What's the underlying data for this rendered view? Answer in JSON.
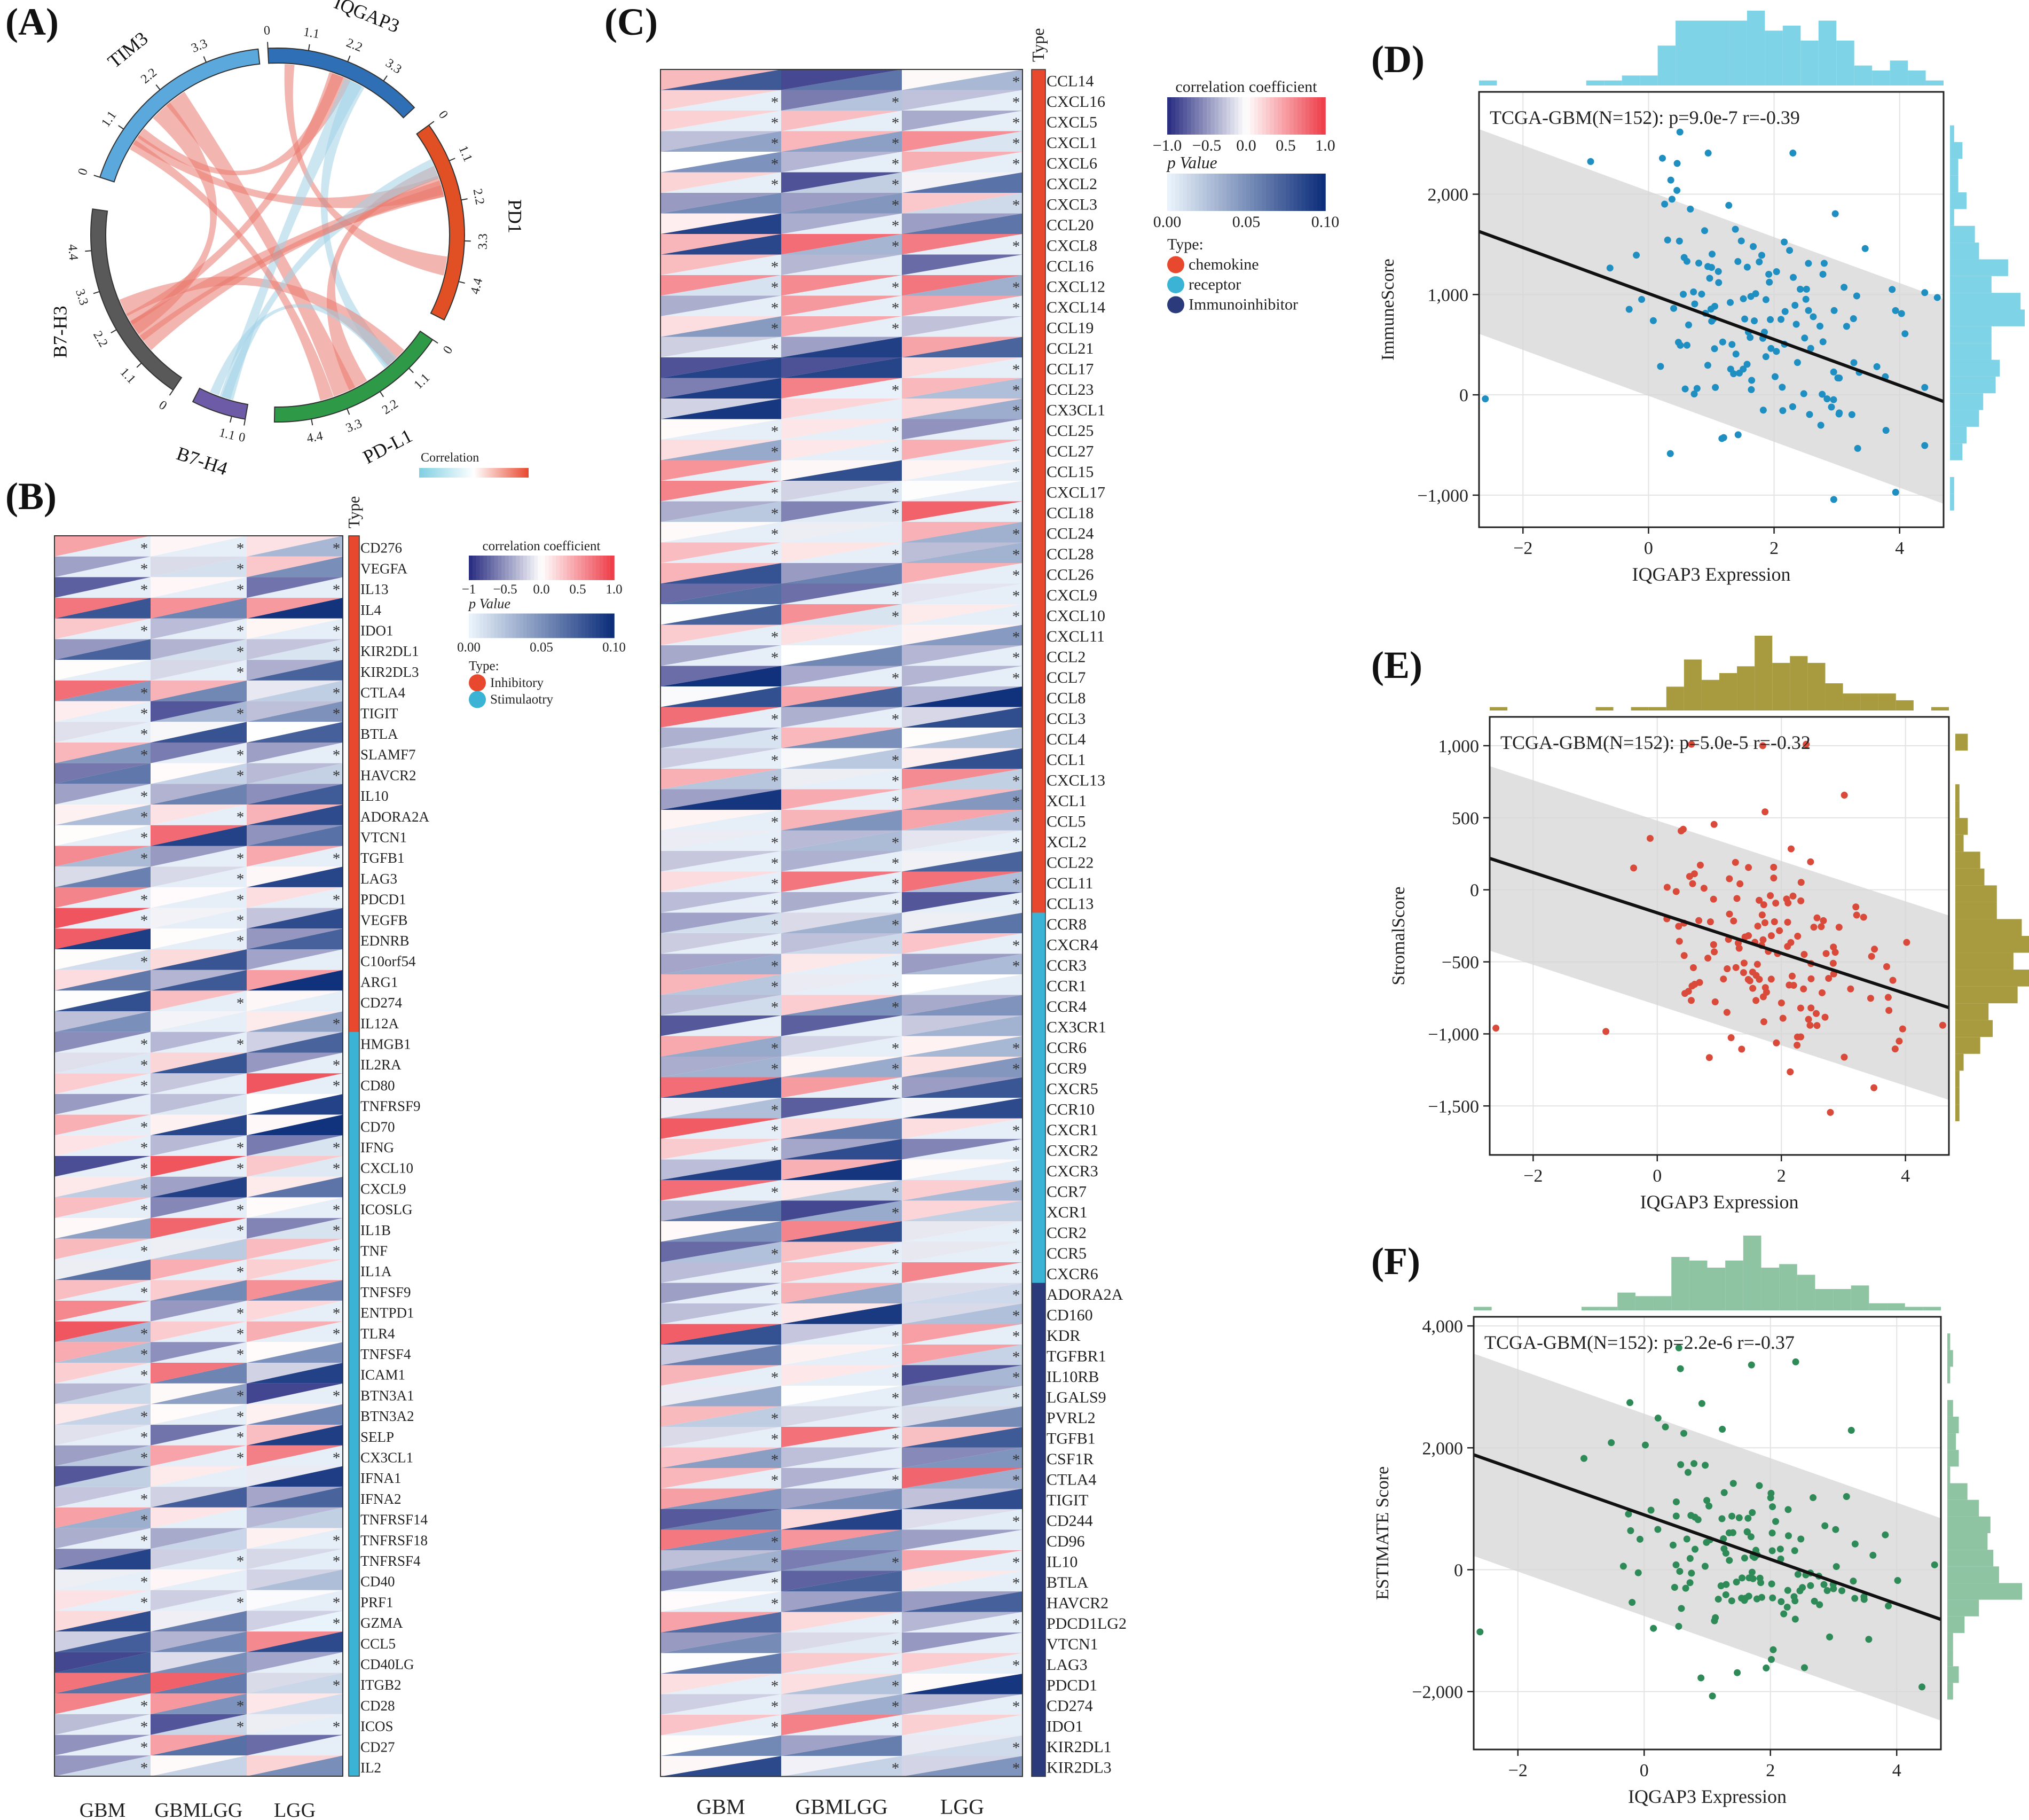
{
  "panel_labels": {
    "a": "(A)",
    "b": "(B)",
    "c": "(C)",
    "d": "(D)",
    "e": "(E)",
    "f": "(F)"
  },
  "colors": {
    "inhibitory": "#E8482E",
    "stimulatory": "#3BB3D4",
    "chemokine": "#E8482E",
    "receptor": "#3BB3D4",
    "immunoinhibitor": "#2B3A7A",
    "tim3": "#5BA8DD",
    "iqgap3": "#2F6FB5",
    "pd1": "#E05024",
    "pdl1": "#2E9A47",
    "b7h4": "#6E5BA8",
    "b7h3": "#595959",
    "immune_points": "#1F8FC2",
    "immune_hist": "#7FD3E6",
    "stromal_points": "#D94A3A",
    "stromal_hist": "#A89A3E",
    "estimate_points": "#2E8B57",
    "estimate_hist": "#8FC4A3"
  },
  "chart_data": [
    {
      "type": "chord",
      "id": "A",
      "sectors": [
        {
          "name": "IQGAP3",
          "ticks": [
            "0",
            "1.1",
            "2.2",
            "3.3"
          ]
        },
        {
          "name": "PD1",
          "ticks": [
            "0",
            "1.1",
            "2.2",
            "3.3",
            "4.4"
          ]
        },
        {
          "name": "PD-L1",
          "ticks": [
            "0",
            "1.1",
            "2.2",
            "3.3",
            "4.4"
          ]
        },
        {
          "name": "B7-H4",
          "ticks": [
            "0",
            "1.1"
          ]
        },
        {
          "name": "B7-H3",
          "ticks": [
            "0",
            "1.1",
            "2.2",
            "3.3",
            "4.4"
          ]
        },
        {
          "name": "TIM3",
          "ticks": [
            "0",
            "1.1",
            "2.2",
            "3.3"
          ]
        }
      ],
      "legend": {
        "title": "Correlation"
      }
    },
    {
      "type": "heatmap",
      "id": "B",
      "columns": [
        "GBM",
        "GBMLGG",
        "LGG"
      ],
      "type_label": "Type",
      "legend": {
        "corr_title": "correlation coefficient",
        "corr_ticks": [
          "−1",
          "−0.5",
          "0.0",
          "0.5",
          "1.0"
        ],
        "p_title": "p Value",
        "p_ticks": [
          "0.00",
          "0.05",
          "0.10"
        ],
        "type_title": "Type:",
        "types": [
          "Inhibitory",
          "Stimulaotry"
        ]
      },
      "rows": [
        {
          "gene": "CD276",
          "type": "Inhibitory"
        },
        {
          "gene": "VEGFA",
          "type": "Inhibitory"
        },
        {
          "gene": "IL13",
          "type": "Inhibitory"
        },
        {
          "gene": "IL4",
          "type": "Inhibitory"
        },
        {
          "gene": "IDO1",
          "type": "Inhibitory"
        },
        {
          "gene": "KIR2DL1",
          "type": "Inhibitory"
        },
        {
          "gene": "KIR2DL3",
          "type": "Inhibitory"
        },
        {
          "gene": "CTLA4",
          "type": "Inhibitory"
        },
        {
          "gene": "TIGIT",
          "type": "Inhibitory"
        },
        {
          "gene": "BTLA",
          "type": "Inhibitory"
        },
        {
          "gene": "SLAMF7",
          "type": "Inhibitory"
        },
        {
          "gene": "HAVCR2",
          "type": "Inhibitory"
        },
        {
          "gene": "IL10",
          "type": "Inhibitory"
        },
        {
          "gene": "ADORA2A",
          "type": "Inhibitory"
        },
        {
          "gene": "VTCN1",
          "type": "Inhibitory"
        },
        {
          "gene": "TGFB1",
          "type": "Inhibitory"
        },
        {
          "gene": "LAG3",
          "type": "Inhibitory"
        },
        {
          "gene": "PDCD1",
          "type": "Inhibitory"
        },
        {
          "gene": "VEGFB",
          "type": "Inhibitory"
        },
        {
          "gene": "EDNRB",
          "type": "Inhibitory"
        },
        {
          "gene": "C10orf54",
          "type": "Inhibitory"
        },
        {
          "gene": "ARG1",
          "type": "Inhibitory"
        },
        {
          "gene": "CD274",
          "type": "Inhibitory"
        },
        {
          "gene": "IL12A",
          "type": "Inhibitory"
        },
        {
          "gene": "HMGB1",
          "type": "Stimulaotry"
        },
        {
          "gene": "IL2RA",
          "type": "Stimulaotry"
        },
        {
          "gene": "CD80",
          "type": "Stimulaotry"
        },
        {
          "gene": "TNFRSF9",
          "type": "Stimulaotry"
        },
        {
          "gene": "CD70",
          "type": "Stimulaotry"
        },
        {
          "gene": "IFNG",
          "type": "Stimulaotry"
        },
        {
          "gene": "CXCL10",
          "type": "Stimulaotry"
        },
        {
          "gene": "CXCL9",
          "type": "Stimulaotry"
        },
        {
          "gene": "ICOSLG",
          "type": "Stimulaotry"
        },
        {
          "gene": "IL1B",
          "type": "Stimulaotry"
        },
        {
          "gene": "TNF",
          "type": "Stimulaotry"
        },
        {
          "gene": "IL1A",
          "type": "Stimulaotry"
        },
        {
          "gene": "TNFSF9",
          "type": "Stimulaotry"
        },
        {
          "gene": "ENTPD1",
          "type": "Stimulaotry"
        },
        {
          "gene": "TLR4",
          "type": "Stimulaotry"
        },
        {
          "gene": "TNFSF4",
          "type": "Stimulaotry"
        },
        {
          "gene": "ICAM1",
          "type": "Stimulaotry"
        },
        {
          "gene": "BTN3A1",
          "type": "Stimulaotry"
        },
        {
          "gene": "BTN3A2",
          "type": "Stimulaotry"
        },
        {
          "gene": "SELP",
          "type": "Stimulaotry"
        },
        {
          "gene": "CX3CL1",
          "type": "Stimulaotry"
        },
        {
          "gene": "IFNA1",
          "type": "Stimulaotry"
        },
        {
          "gene": "IFNA2",
          "type": "Stimulaotry"
        },
        {
          "gene": "TNFRSF14",
          "type": "Stimulaotry"
        },
        {
          "gene": "TNFRSF18",
          "type": "Stimulaotry"
        },
        {
          "gene": "TNFRSF4",
          "type": "Stimulaotry"
        },
        {
          "gene": "CD40",
          "type": "Stimulaotry"
        },
        {
          "gene": "PRF1",
          "type": "Stimulaotry"
        },
        {
          "gene": "GZMA",
          "type": "Stimulaotry"
        },
        {
          "gene": "CCL5",
          "type": "Stimulaotry"
        },
        {
          "gene": "CD40LG",
          "type": "Stimulaotry"
        },
        {
          "gene": "ITGB2",
          "type": "Stimulaotry"
        },
        {
          "gene": "CD28",
          "type": "Stimulaotry"
        },
        {
          "gene": "ICOS",
          "type": "Stimulaotry"
        },
        {
          "gene": "CD27",
          "type": "Stimulaotry"
        },
        {
          "gene": "IL2",
          "type": "Stimulaotry"
        }
      ]
    },
    {
      "type": "heatmap",
      "id": "C",
      "columns": [
        "GBM",
        "GBMLGG",
        "LGG"
      ],
      "type_label": "Type",
      "legend": {
        "corr_title": "correlation coefficient",
        "corr_ticks": [
          "−1.0",
          "−0.5",
          "0.0",
          "0.5",
          "1.0"
        ],
        "p_title": "p Value",
        "p_ticks": [
          "0.00",
          "0.05",
          "0.10"
        ],
        "type_title": "Type:",
        "types": [
          "chemokine",
          "receptor",
          "Immunoinhibitor"
        ]
      },
      "rows": [
        {
          "gene": "CCL14",
          "type": "chemokine"
        },
        {
          "gene": "CXCL16",
          "type": "chemokine"
        },
        {
          "gene": "CXCL5",
          "type": "chemokine"
        },
        {
          "gene": "CXCL1",
          "type": "chemokine"
        },
        {
          "gene": "CXCL6",
          "type": "chemokine"
        },
        {
          "gene": "CXCL2",
          "type": "chemokine"
        },
        {
          "gene": "CXCL3",
          "type": "chemokine"
        },
        {
          "gene": "CCL20",
          "type": "chemokine"
        },
        {
          "gene": "CXCL8",
          "type": "chemokine"
        },
        {
          "gene": "CCL16",
          "type": "chemokine"
        },
        {
          "gene": "CXCL12",
          "type": "chemokine"
        },
        {
          "gene": "CXCL14",
          "type": "chemokine"
        },
        {
          "gene": "CCL19",
          "type": "chemokine"
        },
        {
          "gene": "CCL21",
          "type": "chemokine"
        },
        {
          "gene": "CCL17",
          "type": "chemokine"
        },
        {
          "gene": "CCL23",
          "type": "chemokine"
        },
        {
          "gene": "CX3CL1",
          "type": "chemokine"
        },
        {
          "gene": "CCL25",
          "type": "chemokine"
        },
        {
          "gene": "CCL27",
          "type": "chemokine"
        },
        {
          "gene": "CCL15",
          "type": "chemokine"
        },
        {
          "gene": "CXCL17",
          "type": "chemokine"
        },
        {
          "gene": "CCL18",
          "type": "chemokine"
        },
        {
          "gene": "CCL24",
          "type": "chemokine"
        },
        {
          "gene": "CCL28",
          "type": "chemokine"
        },
        {
          "gene": "CCL26",
          "type": "chemokine"
        },
        {
          "gene": "CXCL9",
          "type": "chemokine"
        },
        {
          "gene": "CXCL10",
          "type": "chemokine"
        },
        {
          "gene": "CXCL11",
          "type": "chemokine"
        },
        {
          "gene": "CCL2",
          "type": "chemokine"
        },
        {
          "gene": "CCL7",
          "type": "chemokine"
        },
        {
          "gene": "CCL8",
          "type": "chemokine"
        },
        {
          "gene": "CCL3",
          "type": "chemokine"
        },
        {
          "gene": "CCL4",
          "type": "chemokine"
        },
        {
          "gene": "CCL1",
          "type": "chemokine"
        },
        {
          "gene": "CXCL13",
          "type": "chemokine"
        },
        {
          "gene": "XCL1",
          "type": "chemokine"
        },
        {
          "gene": "CCL5",
          "type": "chemokine"
        },
        {
          "gene": "XCL2",
          "type": "chemokine"
        },
        {
          "gene": "CCL22",
          "type": "chemokine"
        },
        {
          "gene": "CCL11",
          "type": "chemokine"
        },
        {
          "gene": "CCL13",
          "type": "chemokine"
        },
        {
          "gene": "CCR8",
          "type": "receptor"
        },
        {
          "gene": "CXCR4",
          "type": "receptor"
        },
        {
          "gene": "CCR3",
          "type": "receptor"
        },
        {
          "gene": "CCR1",
          "type": "receptor"
        },
        {
          "gene": "CCR4",
          "type": "receptor"
        },
        {
          "gene": "CX3CR1",
          "type": "receptor"
        },
        {
          "gene": "CCR6",
          "type": "receptor"
        },
        {
          "gene": "CCR9",
          "type": "receptor"
        },
        {
          "gene": "CXCR5",
          "type": "receptor"
        },
        {
          "gene": "CCR10",
          "type": "receptor"
        },
        {
          "gene": "CXCR1",
          "type": "receptor"
        },
        {
          "gene": "CXCR2",
          "type": "receptor"
        },
        {
          "gene": "CXCR3",
          "type": "receptor"
        },
        {
          "gene": "CCR7",
          "type": "receptor"
        },
        {
          "gene": "XCR1",
          "type": "receptor"
        },
        {
          "gene": "CCR2",
          "type": "receptor"
        },
        {
          "gene": "CCR5",
          "type": "receptor"
        },
        {
          "gene": "CXCR6",
          "type": "receptor"
        },
        {
          "gene": "ADORA2A",
          "type": "Immunoinhibitor"
        },
        {
          "gene": "CD160",
          "type": "Immunoinhibitor"
        },
        {
          "gene": "KDR",
          "type": "Immunoinhibitor"
        },
        {
          "gene": "TGFBR1",
          "type": "Immunoinhibitor"
        },
        {
          "gene": "IL10RB",
          "type": "Immunoinhibitor"
        },
        {
          "gene": "LGALS9",
          "type": "Immunoinhibitor"
        },
        {
          "gene": "PVRL2",
          "type": "Immunoinhibitor"
        },
        {
          "gene": "TGFB1",
          "type": "Immunoinhibitor"
        },
        {
          "gene": "CSF1R",
          "type": "Immunoinhibitor"
        },
        {
          "gene": "CTLA4",
          "type": "Immunoinhibitor"
        },
        {
          "gene": "TIGIT",
          "type": "Immunoinhibitor"
        },
        {
          "gene": "CD244",
          "type": "Immunoinhibitor"
        },
        {
          "gene": "CD96",
          "type": "Immunoinhibitor"
        },
        {
          "gene": "IL10",
          "type": "Immunoinhibitor"
        },
        {
          "gene": "BTLA",
          "type": "Immunoinhibitor"
        },
        {
          "gene": "HAVCR2",
          "type": "Immunoinhibitor"
        },
        {
          "gene": "PDCD1LG2",
          "type": "Immunoinhibitor"
        },
        {
          "gene": "VTCN1",
          "type": "Immunoinhibitor"
        },
        {
          "gene": "LAG3",
          "type": "Immunoinhibitor"
        },
        {
          "gene": "PDCD1",
          "type": "Immunoinhibitor"
        },
        {
          "gene": "CD274",
          "type": "Immunoinhibitor"
        },
        {
          "gene": "IDO1",
          "type": "Immunoinhibitor"
        },
        {
          "gene": "KIR2DL1",
          "type": "Immunoinhibitor"
        },
        {
          "gene": "KIR2DL3",
          "type": "Immunoinhibitor"
        }
      ]
    },
    {
      "type": "scatter",
      "id": "D",
      "title": "TCGA-GBM(N=152): p=9.0e-7 r=-0.39",
      "xlabel": "IQGAP3 Expression",
      "ylabel": "ImmuneScore",
      "xlim": [
        -2.7,
        4.7
      ],
      "ylim": [
        -1320,
        3020
      ],
      "xticks": [
        -2,
        0,
        2,
        4
      ],
      "yticks": [
        -1000,
        0,
        1000,
        2000
      ],
      "xtick_labels": [
        "−2",
        "0",
        "2",
        "4"
      ],
      "ytick_labels": [
        "−1,000",
        "0",
        "1,000",
        "2,000"
      ],
      "fit": {
        "slope": -229,
        "intercept": 1010
      },
      "band": 1020,
      "outliers": [
        [
          -2.6,
          -40
        ],
        [
          4.6,
          970
        ],
        [
          0.5,
          2620
        ],
        [
          0.95,
          2410
        ],
        [
          2.3,
          2410
        ]
      ],
      "n_points": 152,
      "mean": 700,
      "sd": 620,
      "rs": -0.39,
      "seed": 11
    },
    {
      "type": "scatter",
      "id": "E",
      "title": "TCGA-GBM(N=152): p=5.0e-5 r=-0.32",
      "xlabel": "IQGAP3 Expression",
      "ylabel": "StromalScore",
      "xlim": [
        -2.7,
        4.7
      ],
      "ylim": [
        -1840,
        1200
      ],
      "xticks": [
        -2,
        0,
        2,
        4
      ],
      "yticks": [
        -1500,
        -1000,
        -500,
        0,
        500,
        1000
      ],
      "xtick_labels": [
        "−2",
        "0",
        "2",
        "4"
      ],
      "ytick_labels": [
        "−1,500",
        "−1,000",
        "−500",
        "0",
        "500",
        "1,000"
      ],
      "fit": {
        "slope": -140,
        "intercept": -160
      },
      "band": 640,
      "outliers": [
        [
          -2.6,
          -960
        ],
        [
          4.6,
          -940
        ],
        [
          0.55,
          1010
        ],
        [
          1.7,
          1000
        ],
        [
          2.4,
          1010
        ]
      ],
      "n_points": 152,
      "mean": -450,
      "sd": 410,
      "rs": -0.32,
      "seed": 23
    },
    {
      "type": "scatter",
      "id": "F",
      "title": "TCGA-GBM(N=152): p=2.2e-6 r=-0.37",
      "xlabel": "IQGAP3 Expression",
      "ylabel": "ESTIMATE Score",
      "xlim": [
        -2.7,
        4.7
      ],
      "ylim": [
        -2950,
        4150
      ],
      "xticks": [
        -2,
        0,
        2,
        4
      ],
      "yticks": [
        -2000,
        0,
        2000,
        4000
      ],
      "xtick_labels": [
        "−2",
        "0",
        "2",
        "4"
      ],
      "ytick_labels": [
        "−2,000",
        "0",
        "2,000",
        "4,000"
      ],
      "fit": {
        "slope": -365,
        "intercept": 900
      },
      "band": 1660,
      "outliers": [
        [
          -2.6,
          -1020
        ],
        [
          4.6,
          80
        ],
        [
          0.55,
          3640
        ],
        [
          1.7,
          3360
        ],
        [
          2.4,
          3410
        ]
      ],
      "n_points": 152,
      "mean": 250,
      "sd": 1000,
      "rs": -0.37,
      "seed": 37
    }
  ]
}
